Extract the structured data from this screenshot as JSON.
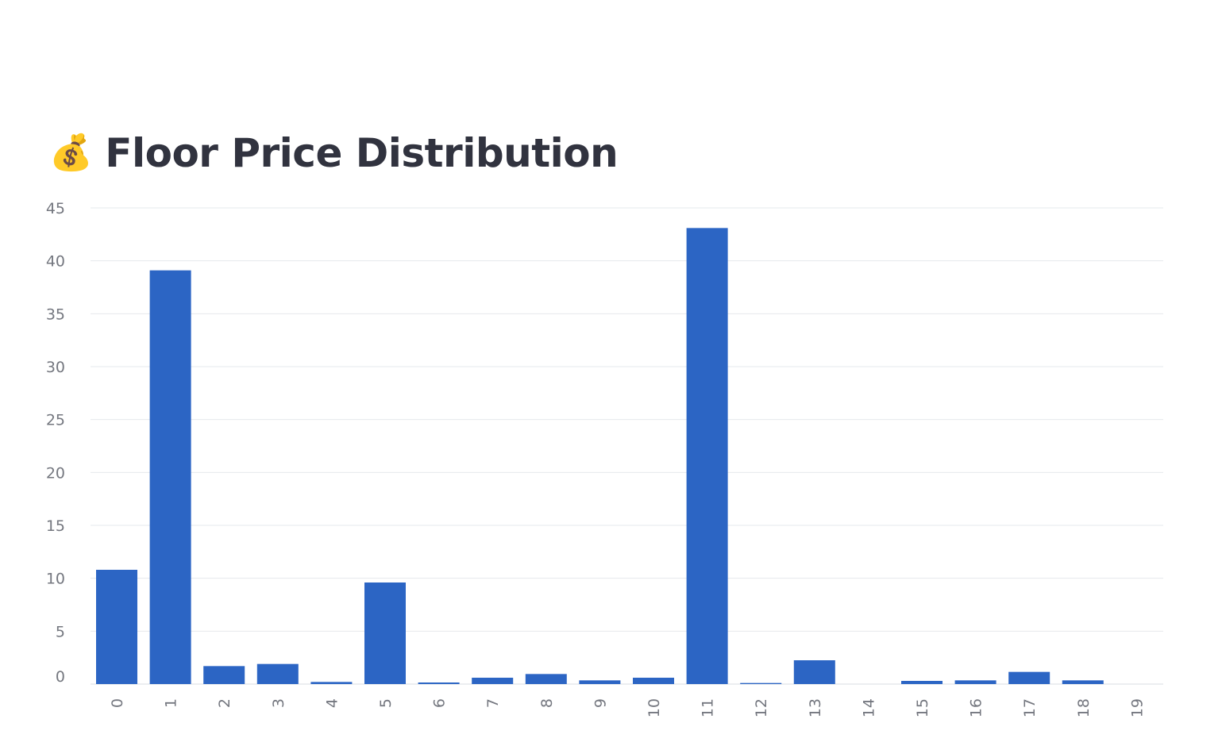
{
  "header": {
    "icon": "money-bag-icon",
    "emoji": "💰",
    "title": "Floor Price Distribution"
  },
  "colors": {
    "bar": "#2c65c4",
    "grid": "#e6e8ec",
    "tick_text": "#74777f",
    "title_text": "#31333f"
  },
  "chart_data": {
    "type": "bar",
    "title": "Floor Price Distribution",
    "xlabel": "",
    "ylabel": "",
    "categories": [
      "0",
      "1",
      "2",
      "3",
      "4",
      "5",
      "6",
      "7",
      "8",
      "9",
      "10",
      "11",
      "12",
      "13",
      "14",
      "15",
      "16",
      "17",
      "18",
      "19"
    ],
    "values": [
      10.8,
      39.1,
      1.7,
      1.9,
      0.2,
      9.6,
      0.15,
      0.6,
      0.95,
      0.35,
      0.6,
      43.1,
      0.1,
      2.25,
      0,
      0.3,
      0.35,
      1.15,
      0.35,
      0
    ],
    "ylim": [
      0,
      45
    ],
    "yticks": [
      "0",
      "5",
      "10",
      "15",
      "20",
      "25",
      "30",
      "35",
      "40",
      "45"
    ],
    "grid": true,
    "x_tick_rotation": -90
  }
}
